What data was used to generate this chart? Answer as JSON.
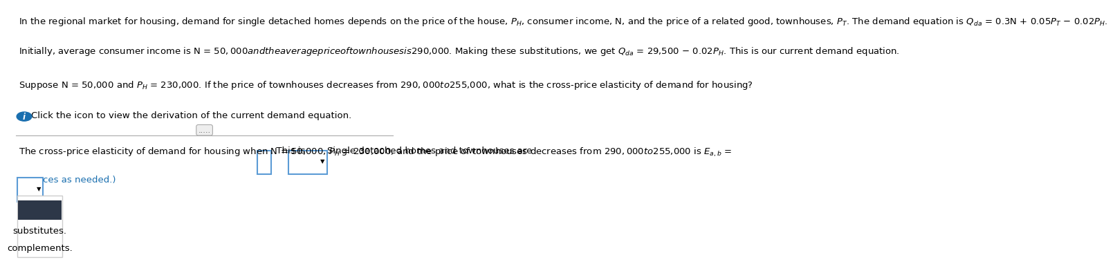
{
  "bg_color": "#ffffff",
  "line1": "In the regional market for housing, demand for single detached homes depends on the price of the house, $P_H$, consumer income, N, and the price of a related good, townhouses, $P_T$. The demand equation is $Q_{da}$ = 0.3N + 0.05$P_T$ − 0.02$P_H$.",
  "line2": "Initially, average consumer income is N = $50,000 and the average price of townhouses is $290,000. Making these substitutions, we get $Q_{da}$ = 29,500 − 0.02$P_H$. This is our current demand equation.",
  "line3": "Suppose N = 50,000 and $P_H$ = 230,000. If the price of townhouses decreases from $290,000 to $255,000, what is the cross-price elasticity of demand for housing?",
  "line4": "Click the icon to view the derivation of the current demand equation.",
  "line5": "The cross-price elasticity of demand for housing when N = 50,000, $P_H$ = 230,000, and the price of townhouses decreases from $290,000 to $255,000 is $E_{a,b}$ =",
  "line5_cont": ". This is",
  "line5_end": "Single detached homes and townhouses are",
  "line6_partial": "ces as needed.)",
  "menu_item1": "substitutes.",
  "menu_item2": "complements.",
  "icon_color": "#1a6faf",
  "box_border_color": "#5b9bd5",
  "menu_bg": "#ffffff",
  "menu_border": "#cccccc",
  "dark_selected": "#2d3748",
  "separator_color": "#aaaaaa",
  "dots_text": ".....",
  "font_size_main": 9.5
}
